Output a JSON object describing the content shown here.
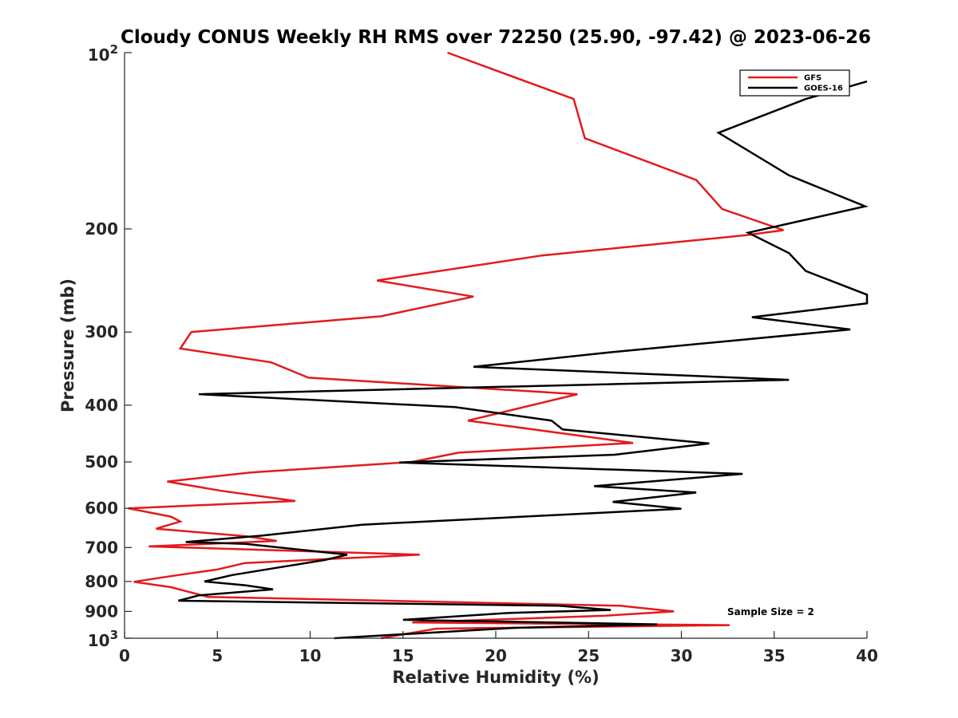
{
  "chart_data": {
    "type": "line",
    "title": "Cloudy CONUS Weekly RH RMS over 72250 (25.90, -97.42) @ 2023-06-26",
    "xlabel": "Relative Humidity (%)",
    "ylabel": "Pressure (mb)",
    "xlim": [
      0,
      40
    ],
    "ylim": [
      100,
      1000
    ],
    "yscale": "log",
    "y_reversed": true,
    "grid": false,
    "legend_position": "top-right",
    "annotation": "Sample Size = 2",
    "x_ticks": [
      "0",
      "5",
      "10",
      "15",
      "20",
      "25",
      "30",
      "35",
      "40"
    ],
    "x_tick_values": [
      0,
      5,
      10,
      15,
      20,
      25,
      30,
      35,
      40
    ],
    "y_ticks": [
      {
        "value": 100,
        "base": "10",
        "exp": "2"
      },
      {
        "value": 200,
        "label": "200"
      },
      {
        "value": 300,
        "label": "300"
      },
      {
        "value": 400,
        "label": "400"
      },
      {
        "value": 500,
        "label": "500"
      },
      {
        "value": 600,
        "label": "600"
      },
      {
        "value": 700,
        "label": "700"
      },
      {
        "value": 800,
        "label": "800"
      },
      {
        "value": 900,
        "label": "900"
      },
      {
        "value": 1000,
        "base": "10",
        "exp": "3"
      }
    ],
    "series": [
      {
        "name": "GFS",
        "color": "#e41a1c",
        "points": [
          [
            17.4,
            100
          ],
          [
            24.2,
            120
          ],
          [
            24.8,
            140
          ],
          [
            30.8,
            165
          ],
          [
            32.2,
            185
          ],
          [
            35.5,
            201
          ],
          [
            33.5,
            205
          ],
          [
            22.5,
            222
          ],
          [
            13.6,
            245
          ],
          [
            18.8,
            261
          ],
          [
            13.8,
            282
          ],
          [
            3.6,
            300
          ],
          [
            3.0,
            320
          ],
          [
            7.9,
            338
          ],
          [
            9.9,
            359
          ],
          [
            24.4,
            383
          ],
          [
            18.5,
            425
          ],
          [
            27.4,
            464
          ],
          [
            18.0,
            482
          ],
          [
            15.5,
            500
          ],
          [
            6.8,
            521
          ],
          [
            2.3,
            540
          ],
          [
            5.2,
            560
          ],
          [
            9.2,
            583
          ],
          [
            0.2,
            600
          ],
          [
            2.5,
            620
          ],
          [
            3.0,
            632
          ],
          [
            1.7,
            650
          ],
          [
            6.6,
            670
          ],
          [
            8.2,
            682
          ],
          [
            6.0,
            687
          ],
          [
            1.3,
            697
          ],
          [
            15.9,
            720
          ],
          [
            6.5,
            744
          ],
          [
            5.0,
            763
          ],
          [
            2.2,
            786
          ],
          [
            0.5,
            801
          ],
          [
            2.5,
            818
          ],
          [
            4.5,
            850
          ],
          [
            26.7,
            880
          ],
          [
            29.6,
            900
          ],
          [
            25.9,
            915
          ],
          [
            15.5,
            940
          ],
          [
            32.6,
            950
          ],
          [
            16.8,
            963
          ],
          [
            13.8,
            1000
          ]
        ]
      },
      {
        "name": "GOES-16",
        "color": "#000000",
        "points": [
          [
            40.0,
            112
          ],
          [
            36.7,
            120
          ],
          [
            32.0,
            137
          ],
          [
            35.8,
            162
          ],
          [
            39.9,
            183
          ],
          [
            33.6,
            203
          ],
          [
            35.8,
            220
          ],
          [
            36.7,
            236
          ],
          [
            40.0,
            259
          ],
          [
            40.0,
            268
          ],
          [
            33.8,
            283
          ],
          [
            39.1,
            297
          ],
          [
            26.1,
            325
          ],
          [
            18.8,
            344
          ],
          [
            35.8,
            362
          ],
          [
            4.0,
            383
          ],
          [
            17.8,
            403
          ],
          [
            23.0,
            425
          ],
          [
            23.6,
            440
          ],
          [
            31.5,
            465
          ],
          [
            26.4,
            486
          ],
          [
            14.8,
            501
          ],
          [
            33.3,
            524
          ],
          [
            25.3,
            550
          ],
          [
            30.8,
            564
          ],
          [
            26.3,
            585
          ],
          [
            30.0,
            601
          ],
          [
            12.8,
            640
          ],
          [
            7.4,
            668
          ],
          [
            3.3,
            685
          ],
          [
            6.5,
            690
          ],
          [
            12.0,
            720
          ],
          [
            10.8,
            735
          ],
          [
            8.2,
            758
          ],
          [
            5.8,
            780
          ],
          [
            4.3,
            800
          ],
          [
            6.5,
            812
          ],
          [
            8.0,
            825
          ],
          [
            4.0,
            845
          ],
          [
            2.9,
            863
          ],
          [
            23.4,
            880
          ],
          [
            26.2,
            895
          ],
          [
            20.8,
            905
          ],
          [
            15.0,
            930
          ],
          [
            28.7,
            947
          ],
          [
            21.0,
            960
          ],
          [
            11.3,
            1000
          ]
        ]
      }
    ]
  }
}
